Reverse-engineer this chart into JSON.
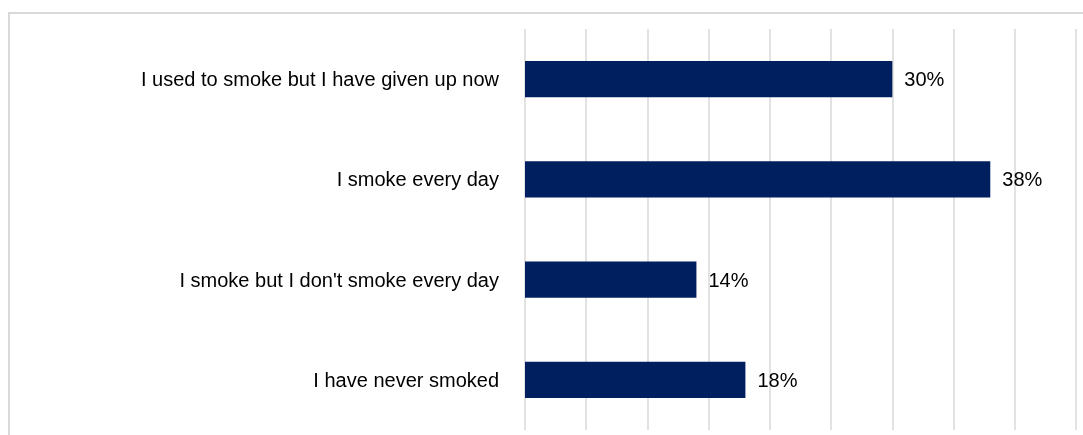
{
  "chart_data": {
    "type": "bar",
    "orientation": "horizontal",
    "categories": [
      "I used to smoke but I have given up now",
      "I smoke every day",
      "I smoke but I don't smoke every day",
      "I have never smoked"
    ],
    "values": [
      30,
      38,
      14,
      18
    ],
    "value_labels": [
      "30%",
      "38%",
      "14%",
      "18%"
    ],
    "color": "#001f5f",
    "xlim": [
      0,
      45
    ],
    "xticks": [
      0,
      5,
      10,
      15,
      20,
      25,
      30,
      35,
      40,
      45
    ],
    "grid": "x",
    "tick_labels": "y"
  }
}
